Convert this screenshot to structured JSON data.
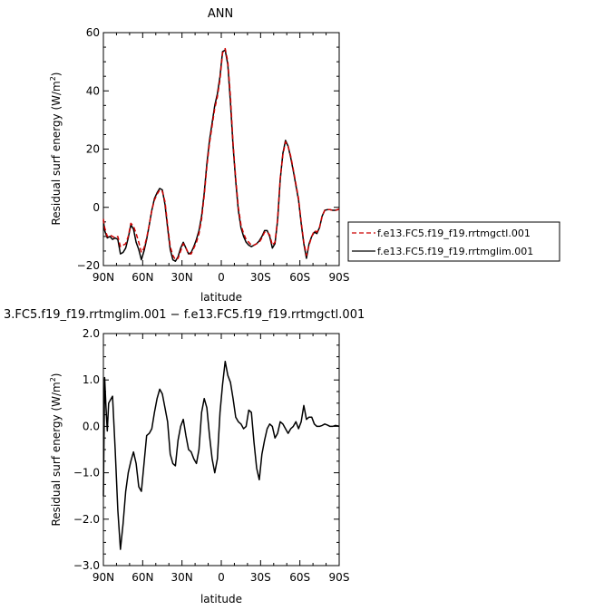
{
  "chart_data": [
    {
      "type": "line",
      "title": "ANN",
      "xlabel": "latitude",
      "ylabel": "Residual surf energy (W/m²)",
      "ylabel_text": "Residual surf energy (W/m",
      "ylabel_exp": "2",
      "ylabel_close": ")",
      "xlim": [
        90,
        -90
      ],
      "ylim": [
        -20,
        60
      ],
      "xticks": [
        90,
        60,
        30,
        0,
        -30,
        -60,
        -90
      ],
      "xtick_labels": [
        "90N",
        "60N",
        "30N",
        "0",
        "30S",
        "60S",
        "90S"
      ],
      "yticks": [
        -20,
        0,
        20,
        40,
        60
      ],
      "ytick_labels": [
        "−20",
        "0",
        "20",
        "40",
        "60"
      ],
      "legend_position": "right",
      "series": [
        {
          "name": "f.e13.FC5.f19_f19.rrtmgctl.001",
          "color": "#cc0000",
          "dash": "5,3",
          "x": [
            90,
            89,
            87,
            85,
            83,
            81,
            79,
            77,
            75,
            73,
            71,
            69,
            67,
            65,
            63,
            61,
            59,
            57,
            55,
            53,
            51,
            49,
            47,
            45,
            43,
            41,
            39,
            37,
            35,
            33,
            31,
            29,
            27,
            25,
            23,
            21,
            19,
            17,
            15,
            13,
            11,
            9,
            7,
            5,
            3,
            1,
            -1,
            -3,
            -5,
            -7,
            -9,
            -11,
            -13,
            -15,
            -17,
            -19,
            -21,
            -23,
            -25,
            -27,
            -29,
            -31,
            -33,
            -35,
            -37,
            -39,
            -41,
            -43,
            -45,
            -47,
            -49,
            -51,
            -53,
            -55,
            -57,
            -59,
            -61,
            -63,
            -65,
            -67,
            -69,
            -71,
            -73,
            -75,
            -77,
            -79,
            -81,
            -83,
            -85,
            -87,
            -89,
            -90
          ],
          "y": [
            -4,
            -7,
            -10,
            -9.5,
            -10,
            -10.5,
            -10,
            -13.5,
            -13,
            -12.5,
            -10,
            -5.5,
            -6.5,
            -9,
            -12,
            -15.5,
            -14,
            -10.5,
            -6,
            -1,
            2.5,
            4.5,
            6,
            5.5,
            2,
            -6,
            -13.5,
            -16.5,
            -18,
            -17.5,
            -15,
            -12.5,
            -14,
            -16,
            -16,
            -14,
            -12,
            -9,
            -4,
            4,
            14,
            22,
            28,
            34,
            38,
            44,
            53,
            54.5,
            50,
            38,
            22,
            10,
            0,
            -6,
            -9,
            -11,
            -12,
            -13,
            -13,
            -12.5,
            -12,
            -10.5,
            -8.5,
            -8.5,
            -9.5,
            -13,
            -12,
            -4,
            10,
            18,
            22.5,
            21,
            17.5,
            13,
            8,
            3,
            -5,
            -12,
            -16.5,
            -13,
            -10,
            -8,
            -8.5,
            -7,
            -3,
            -1,
            -0.8,
            -0.8,
            -1,
            -1,
            -0.8,
            -0.5
          ]
        },
        {
          "name": "f.e13.FC5.f19_f19.rrtmglim.001",
          "color": "#000000",
          "dash": "",
          "x": [
            90,
            89,
            87,
            85,
            83,
            81,
            79,
            77,
            75,
            73,
            71,
            69,
            67,
            65,
            63,
            61,
            59,
            57,
            55,
            53,
            51,
            49,
            47,
            45,
            43,
            41,
            39,
            37,
            35,
            33,
            31,
            29,
            27,
            25,
            23,
            21,
            19,
            17,
            15,
            13,
            11,
            9,
            7,
            5,
            3,
            1,
            -1,
            -3,
            -5,
            -7,
            -9,
            -11,
            -13,
            -15,
            -17,
            -19,
            -21,
            -23,
            -25,
            -27,
            -29,
            -31,
            -33,
            -35,
            -37,
            -39,
            -41,
            -43,
            -45,
            -47,
            -49,
            -51,
            -53,
            -55,
            -57,
            -59,
            -61,
            -63,
            -65,
            -67,
            -69,
            -71,
            -73,
            -75,
            -77,
            -79,
            -81,
            -83,
            -85,
            -87,
            -89,
            -90
          ],
          "y": [
            -4.5,
            -8,
            -10.5,
            -10,
            -11,
            -10.5,
            -11,
            -16,
            -15.5,
            -14,
            -10.5,
            -6,
            -7.5,
            -12,
            -14.5,
            -18,
            -15,
            -11,
            -6,
            -1,
            3,
            5,
            6.5,
            6,
            1,
            -7,
            -14.5,
            -18,
            -18.5,
            -17,
            -14,
            -12,
            -14,
            -16,
            -15.5,
            -13.5,
            -11,
            -8,
            -3,
            5,
            15,
            23,
            29,
            35,
            39,
            45,
            53.5,
            54,
            49,
            36,
            21,
            9,
            -1,
            -7,
            -10,
            -12,
            -13,
            -13.5,
            -13,
            -12.5,
            -11.5,
            -10,
            -8,
            -8,
            -10,
            -14,
            -12.5,
            -4.5,
            9.5,
            18.5,
            23,
            21,
            17,
            12.5,
            7.5,
            2.5,
            -5.5,
            -12.5,
            -17.5,
            -12.5,
            -10,
            -8.5,
            -9,
            -7,
            -3,
            -1,
            -0.8,
            -0.8,
            -1,
            -1,
            -0.8,
            -0.5
          ]
        }
      ]
    },
    {
      "type": "line",
      "title": "3.FC5.f19_f19.rrtmglim.001 − f.e13.FC5.f19_f19.rrtmgctl.001",
      "xlabel": "latitude",
      "ylabel": "Residual surf energy (W/m²)",
      "ylabel_text": "Residual surf energy (W/m",
      "ylabel_exp": "2",
      "ylabel_close": ")",
      "xlim": [
        90,
        -90
      ],
      "ylim": [
        -3,
        2
      ],
      "xticks": [
        90,
        60,
        30,
        0,
        -30,
        -60,
        -90
      ],
      "xtick_labels": [
        "90N",
        "60N",
        "30N",
        "0",
        "30S",
        "60S",
        "90S"
      ],
      "yticks": [
        -3,
        -2,
        -1,
        0,
        1,
        2
      ],
      "ytick_labels": [
        "−3.0",
        "−2.0",
        "−1.0",
        "0.0",
        "1.0",
        "2.0"
      ],
      "series": [
        {
          "color": "#000000",
          "x": [
            90,
            89,
            88,
            87,
            86,
            85,
            83,
            81,
            79,
            77,
            75,
            73,
            71,
            69,
            67,
            65,
            63,
            61,
            59,
            57,
            55,
            53,
            51,
            49,
            47,
            45,
            43,
            41,
            39,
            37,
            35,
            33,
            31,
            29,
            27,
            25,
            23,
            21,
            19,
            17,
            15,
            13,
            11,
            9,
            7,
            5,
            3,
            1,
            -1,
            -3,
            -5,
            -7,
            -9,
            -11,
            -13,
            -15,
            -17,
            -19,
            -21,
            -23,
            -25,
            -27,
            -29,
            -31,
            -33,
            -35,
            -37,
            -39,
            -41,
            -43,
            -45,
            -47,
            -49,
            -51,
            -53,
            -55,
            -57,
            -59,
            -61,
            -63,
            -65,
            -67,
            -69,
            -71,
            -73,
            -75,
            -77,
            -79,
            -81,
            -83,
            -85,
            -87,
            -89,
            -90
          ],
          "y": [
            -1.5,
            1.05,
            0.4,
            -0.1,
            0.5,
            0.55,
            0.65,
            -0.5,
            -1.8,
            -2.65,
            -2.1,
            -1.4,
            -1.0,
            -0.75,
            -0.55,
            -0.8,
            -1.3,
            -1.4,
            -0.8,
            -0.2,
            -0.15,
            -0.05,
            0.3,
            0.6,
            0.8,
            0.7,
            0.4,
            0.1,
            -0.6,
            -0.8,
            -0.85,
            -0.3,
            0.0,
            0.15,
            -0.2,
            -0.5,
            -0.55,
            -0.7,
            -0.8,
            -0.5,
            0.3,
            0.6,
            0.4,
            -0.2,
            -0.7,
            -1.0,
            -0.7,
            0.3,
            0.9,
            1.4,
            1.1,
            0.95,
            0.6,
            0.2,
            0.1,
            0.05,
            -0.05,
            0.0,
            0.35,
            0.3,
            -0.35,
            -0.9,
            -1.15,
            -0.6,
            -0.3,
            -0.05,
            0.05,
            0.0,
            -0.25,
            -0.15,
            0.1,
            0.05,
            -0.05,
            -0.15,
            -0.05,
            0.0,
            0.1,
            -0.05,
            0.1,
            0.45,
            0.15,
            0.2,
            0.2,
            0.05,
            0.0,
            0.0,
            0.02,
            0.05,
            0.03,
            0.0,
            0.0,
            0.02,
            0.01,
            0.0
          ]
        }
      ]
    }
  ]
}
